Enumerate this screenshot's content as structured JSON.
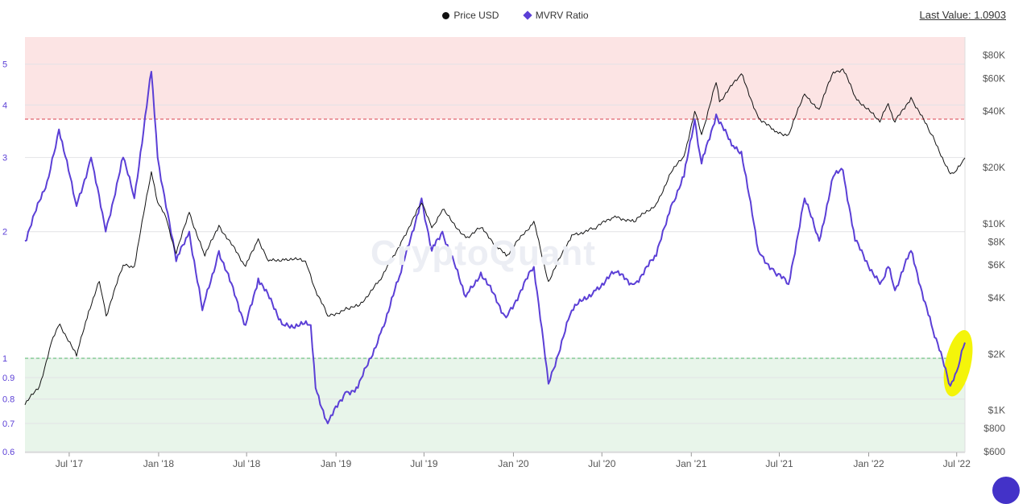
{
  "legend": {
    "price_label": "Price USD",
    "mvrv_label": "MVRV Ratio"
  },
  "last_value": "Last Value: 1.0903",
  "watermark": "CryptoQuant",
  "colors": {
    "price": "#111111",
    "mvrv": "#5b3fd6",
    "overvalued_zone": "#fce4e4",
    "undervalued_zone": "#e8f5ea",
    "overvalued_line": "#d9414e",
    "undervalued_line": "#52b36a",
    "highlight": "#f4f40a"
  },
  "chart_data": {
    "type": "line",
    "x_range": [
      "2017-04-01",
      "2022-07-18"
    ],
    "x_ticks": [
      {
        "label": "Jul '17",
        "date": "2017-07-01"
      },
      {
        "label": "Jan '18",
        "date": "2018-01-01"
      },
      {
        "label": "Jul '18",
        "date": "2018-07-01"
      },
      {
        "label": "Jan '19",
        "date": "2019-01-01"
      },
      {
        "label": "Jul '19",
        "date": "2019-07-01"
      },
      {
        "label": "Jan '20",
        "date": "2020-01-01"
      },
      {
        "label": "Jul '20",
        "date": "2020-07-01"
      },
      {
        "label": "Jan '21",
        "date": "2021-01-01"
      },
      {
        "label": "Jul '21",
        "date": "2021-07-01"
      },
      {
        "label": "Jan '22",
        "date": "2022-01-01"
      },
      {
        "label": "Jul '22",
        "date": "2022-07-01"
      }
    ],
    "y_left": {
      "scale": "log",
      "range": [
        0.6,
        5.8
      ],
      "ticks": [
        {
          "label": "5",
          "value": 5
        },
        {
          "label": "4",
          "value": 4
        },
        {
          "label": "3",
          "value": 3
        },
        {
          "label": "2",
          "value": 2
        },
        {
          "label": "1",
          "value": 1
        },
        {
          "label": "0.9",
          "value": 0.9
        },
        {
          "label": "0.8",
          "value": 0.8
        },
        {
          "label": "0.7",
          "value": 0.7
        },
        {
          "label": "0.6",
          "value": 0.6
        }
      ]
    },
    "y_right": {
      "scale": "log",
      "range": [
        600,
        100000
      ],
      "ticks": [
        {
          "label": "$80K",
          "value": 80000
        },
        {
          "label": "$60K",
          "value": 60000
        },
        {
          "label": "$40K",
          "value": 40000
        },
        {
          "label": "$20K",
          "value": 20000
        },
        {
          "label": "$10K",
          "value": 10000
        },
        {
          "label": "$8K",
          "value": 8000
        },
        {
          "label": "$6K",
          "value": 6000
        },
        {
          "label": "$4K",
          "value": 4000
        },
        {
          "label": "$2K",
          "value": 2000
        },
        {
          "label": "$1K",
          "value": 1000
        },
        {
          "label": "$800",
          "value": 800
        },
        {
          "label": "$600",
          "value": 600
        }
      ]
    },
    "zones": [
      {
        "from": 3.7,
        "to": 5.8
      },
      {
        "from": 0.6,
        "to": 1.0
      }
    ],
    "threshold_lines": [
      3.7,
      1.0
    ],
    "series": [
      {
        "name": "Price USD",
        "axis": "right",
        "points": [
          [
            "2017-04-01",
            1070
          ],
          [
            "2017-05-01",
            1350
          ],
          [
            "2017-05-25",
            2300
          ],
          [
            "2017-06-12",
            2900
          ],
          [
            "2017-07-16",
            1950
          ],
          [
            "2017-08-10",
            3400
          ],
          [
            "2017-09-01",
            4900
          ],
          [
            "2017-09-15",
            3200
          ],
          [
            "2017-10-20",
            6000
          ],
          [
            "2017-11-12",
            5900
          ],
          [
            "2017-12-17",
            19000
          ],
          [
            "2017-12-30",
            13000
          ],
          [
            "2018-01-16",
            10800
          ],
          [
            "2018-02-06",
            6900
          ],
          [
            "2018-03-05",
            11500
          ],
          [
            "2018-04-06",
            6700
          ],
          [
            "2018-05-05",
            9800
          ],
          [
            "2018-06-29",
            5900
          ],
          [
            "2018-07-25",
            8300
          ],
          [
            "2018-08-15",
            6300
          ],
          [
            "2018-09-20",
            6500
          ],
          [
            "2018-10-30",
            6300
          ],
          [
            "2018-11-20",
            4400
          ],
          [
            "2018-12-15",
            3200
          ],
          [
            "2019-01-25",
            3500
          ],
          [
            "2019-02-15",
            3600
          ],
          [
            "2019-04-03",
            5000
          ],
          [
            "2019-05-15",
            8000
          ],
          [
            "2019-06-26",
            12900
          ],
          [
            "2019-07-17",
            9500
          ],
          [
            "2019-08-08",
            11900
          ],
          [
            "2019-09-25",
            8400
          ],
          [
            "2019-10-26",
            9500
          ],
          [
            "2019-12-17",
            6700
          ],
          [
            "2020-02-12",
            10300
          ],
          [
            "2020-03-13",
            4900
          ],
          [
            "2020-04-30",
            8700
          ],
          [
            "2020-06-15",
            9400
          ],
          [
            "2020-07-28",
            11000
          ],
          [
            "2020-09-05",
            10200
          ],
          [
            "2020-10-21",
            12800
          ],
          [
            "2020-11-20",
            18700
          ],
          [
            "2020-12-17",
            23000
          ],
          [
            "2021-01-08",
            40000
          ],
          [
            "2021-01-22",
            30000
          ],
          [
            "2021-02-21",
            57000
          ],
          [
            "2021-02-28",
            45000
          ],
          [
            "2021-04-14",
            63500
          ],
          [
            "2021-05-19",
            37000
          ],
          [
            "2021-06-22",
            31000
          ],
          [
            "2021-07-20",
            30000
          ],
          [
            "2021-08-22",
            49500
          ],
          [
            "2021-09-21",
            41000
          ],
          [
            "2021-10-20",
            65000
          ],
          [
            "2021-11-09",
            67500
          ],
          [
            "2021-12-04",
            48000
          ],
          [
            "2022-01-24",
            35000
          ],
          [
            "2022-02-10",
            44000
          ],
          [
            "2022-02-24",
            35000
          ],
          [
            "2022-03-29",
            47500
          ],
          [
            "2022-05-10",
            30000
          ],
          [
            "2022-06-18",
            18500
          ],
          [
            "2022-07-01",
            19300
          ],
          [
            "2022-07-18",
            22500
          ]
        ]
      },
      {
        "name": "MVRV Ratio",
        "axis": "left",
        "points": [
          [
            "2017-04-01",
            1.9
          ],
          [
            "2017-05-20",
            2.7
          ],
          [
            "2017-06-10",
            3.5
          ],
          [
            "2017-07-16",
            2.3
          ],
          [
            "2017-08-15",
            3.0
          ],
          [
            "2017-09-14",
            2.0
          ],
          [
            "2017-10-20",
            3.0
          ],
          [
            "2017-11-12",
            2.4
          ],
          [
            "2017-12-17",
            4.8
          ],
          [
            "2017-12-30",
            3.0
          ],
          [
            "2018-02-06",
            1.7
          ],
          [
            "2018-03-05",
            2.0
          ],
          [
            "2018-04-01",
            1.3
          ],
          [
            "2018-05-05",
            1.8
          ],
          [
            "2018-06-29",
            1.2
          ],
          [
            "2018-07-25",
            1.55
          ],
          [
            "2018-09-15",
            1.2
          ],
          [
            "2018-11-10",
            1.2
          ],
          [
            "2018-11-20",
            0.85
          ],
          [
            "2018-12-15",
            0.7
          ],
          [
            "2019-01-20",
            0.83
          ],
          [
            "2019-02-15",
            0.85
          ],
          [
            "2019-04-03",
            1.15
          ],
          [
            "2019-05-15",
            1.6
          ],
          [
            "2019-06-26",
            2.4
          ],
          [
            "2019-07-17",
            1.8
          ],
          [
            "2019-08-08",
            2.0
          ],
          [
            "2019-09-25",
            1.4
          ],
          [
            "2019-10-26",
            1.6
          ],
          [
            "2019-12-17",
            1.25
          ],
          [
            "2020-02-12",
            1.65
          ],
          [
            "2020-03-13",
            0.87
          ],
          [
            "2020-04-30",
            1.3
          ],
          [
            "2020-06-15",
            1.45
          ],
          [
            "2020-07-28",
            1.6
          ],
          [
            "2020-09-05",
            1.5
          ],
          [
            "2020-10-21",
            1.75
          ],
          [
            "2020-11-20",
            2.3
          ],
          [
            "2020-12-17",
            2.7
          ],
          [
            "2021-01-08",
            3.7
          ],
          [
            "2021-01-22",
            2.9
          ],
          [
            "2021-02-21",
            3.8
          ],
          [
            "2021-03-25",
            3.2
          ],
          [
            "2021-04-14",
            3.1
          ],
          [
            "2021-05-19",
            1.8
          ],
          [
            "2021-06-22",
            1.6
          ],
          [
            "2021-07-20",
            1.5
          ],
          [
            "2021-08-22",
            2.4
          ],
          [
            "2021-09-21",
            1.9
          ],
          [
            "2021-10-20",
            2.7
          ],
          [
            "2021-11-09",
            2.8
          ],
          [
            "2021-12-04",
            1.9
          ],
          [
            "2022-01-24",
            1.5
          ],
          [
            "2022-02-10",
            1.65
          ],
          [
            "2022-02-24",
            1.45
          ],
          [
            "2022-03-29",
            1.8
          ],
          [
            "2022-05-10",
            1.2
          ],
          [
            "2022-06-18",
            0.86
          ],
          [
            "2022-07-01",
            0.93
          ],
          [
            "2022-07-18",
            1.09
          ]
        ]
      }
    ]
  }
}
